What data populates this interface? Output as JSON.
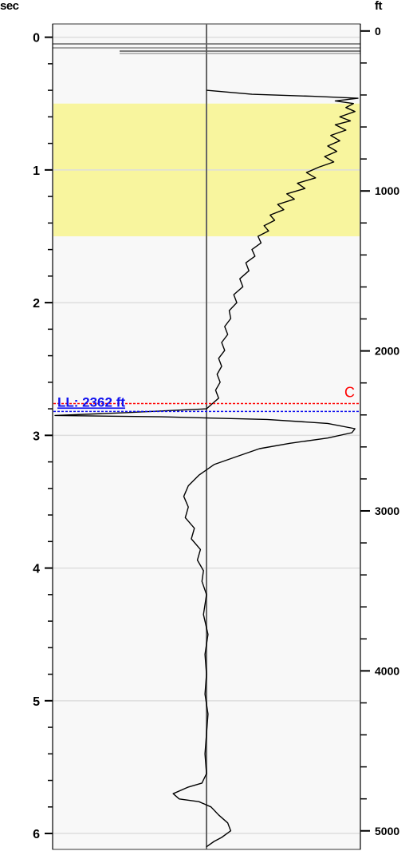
{
  "axes": {
    "left_unit": "sec",
    "right_unit": "ft"
  },
  "chart_data": {
    "type": "line",
    "title": "",
    "y_left": {
      "label": "sec",
      "range": [
        -0.1,
        6.12
      ],
      "ticks": [
        0,
        1,
        2,
        3,
        4,
        5,
        6
      ],
      "minor_step": 0.2
    },
    "y_right": {
      "label": "ft",
      "range": [
        -44,
        5116
      ],
      "ticks": [
        0,
        1000,
        2000,
        3000,
        4000,
        5000
      ],
      "tick_labels": [
        "0",
        "1000",
        "2000",
        "3000",
        "4000",
        "5000"
      ],
      "minor_step": 200
    },
    "grid": {
      "horizontal_at_major_ticks": true,
      "center_line": true
    },
    "highlight_band": {
      "from_sec": 0.5,
      "to_sec": 1.5,
      "color": "#f8f59e"
    },
    "markers": [
      {
        "name": "C",
        "depth_sec": 2.76,
        "color": "#ff0000"
      },
      {
        "name": "LL",
        "label": "LL: 2362 ft",
        "depth_ft": 2362,
        "depth_sec": 2.82,
        "color": "#1010ee"
      }
    ],
    "series": [
      {
        "points": [
          [
            0,
            0.4
          ],
          [
            0.3,
            0.43
          ],
          [
            0.7,
            0.445
          ],
          [
            1.0,
            0.46
          ],
          [
            0.85,
            0.48
          ],
          [
            0.97,
            0.5
          ],
          [
            0.92,
            0.53
          ],
          [
            0.98,
            0.56
          ],
          [
            0.88,
            0.6
          ],
          [
            0.95,
            0.63
          ],
          [
            0.85,
            0.66
          ],
          [
            0.92,
            0.7
          ],
          [
            0.82,
            0.74
          ],
          [
            0.88,
            0.78
          ],
          [
            0.8,
            0.82
          ],
          [
            0.86,
            0.86
          ],
          [
            0.78,
            0.9
          ],
          [
            0.84,
            0.94
          ],
          [
            0.74,
            0.98
          ],
          [
            0.66,
            1.02
          ],
          [
            0.72,
            1.06
          ],
          [
            0.6,
            1.1
          ],
          [
            0.65,
            1.14
          ],
          [
            0.53,
            1.18
          ],
          [
            0.58,
            1.22
          ],
          [
            0.47,
            1.26
          ],
          [
            0.51,
            1.3
          ],
          [
            0.42,
            1.34
          ],
          [
            0.45,
            1.38
          ],
          [
            0.38,
            1.42
          ],
          [
            0.41,
            1.46
          ],
          [
            0.34,
            1.5
          ],
          [
            0.36,
            1.55
          ],
          [
            0.3,
            1.6
          ],
          [
            0.32,
            1.65
          ],
          [
            0.26,
            1.7
          ],
          [
            0.28,
            1.76
          ],
          [
            0.22,
            1.82
          ],
          [
            0.24,
            1.88
          ],
          [
            0.18,
            1.94
          ],
          [
            0.2,
            2.0
          ],
          [
            0.15,
            2.06
          ],
          [
            0.16,
            2.12
          ],
          [
            0.12,
            2.18
          ],
          [
            0.14,
            2.24
          ],
          [
            0.1,
            2.3
          ],
          [
            0.12,
            2.36
          ],
          [
            0.08,
            2.42
          ],
          [
            0.1,
            2.48
          ],
          [
            0.07,
            2.54
          ],
          [
            0.09,
            2.6
          ],
          [
            0.06,
            2.66
          ],
          [
            0.08,
            2.72
          ],
          [
            0.04,
            2.76
          ],
          [
            0.0,
            2.8
          ],
          [
            -0.55,
            2.83
          ],
          [
            -1.0,
            2.85
          ],
          [
            -0.3,
            2.86
          ],
          [
            0.4,
            2.88
          ],
          [
            0.8,
            2.91
          ],
          [
            0.98,
            2.95
          ],
          [
            0.96,
            2.98
          ],
          [
            0.8,
            3.02
          ],
          [
            0.55,
            3.06
          ],
          [
            0.35,
            3.1
          ],
          [
            0.2,
            3.16
          ],
          [
            0.05,
            3.22
          ],
          [
            -0.05,
            3.3
          ],
          [
            -0.12,
            3.38
          ],
          [
            -0.15,
            3.46
          ],
          [
            -0.12,
            3.54
          ],
          [
            -0.14,
            3.62
          ],
          [
            -0.08,
            3.7
          ],
          [
            -0.1,
            3.78
          ],
          [
            -0.04,
            3.86
          ],
          [
            -0.06,
            3.94
          ],
          [
            -0.02,
            4.02
          ],
          [
            -0.03,
            4.1
          ],
          [
            0.0,
            4.2
          ],
          [
            -0.02,
            4.35
          ],
          [
            0.01,
            4.5
          ],
          [
            -0.01,
            4.65
          ],
          [
            0.0,
            4.8
          ],
          [
            -0.01,
            4.95
          ],
          [
            0.01,
            5.1
          ],
          [
            0.0,
            5.25
          ],
          [
            -0.01,
            5.4
          ],
          [
            0.0,
            5.55
          ],
          [
            -0.03,
            5.62
          ],
          [
            -0.12,
            5.65
          ],
          [
            -0.22,
            5.7
          ],
          [
            -0.18,
            5.74
          ],
          [
            -0.05,
            5.76
          ],
          [
            0.03,
            5.8
          ],
          [
            0.08,
            5.86
          ],
          [
            0.14,
            5.92
          ],
          [
            0.16,
            5.98
          ],
          [
            0.1,
            6.03
          ],
          [
            0.05,
            6.06
          ],
          [
            0.0,
            6.1
          ]
        ]
      }
    ]
  }
}
